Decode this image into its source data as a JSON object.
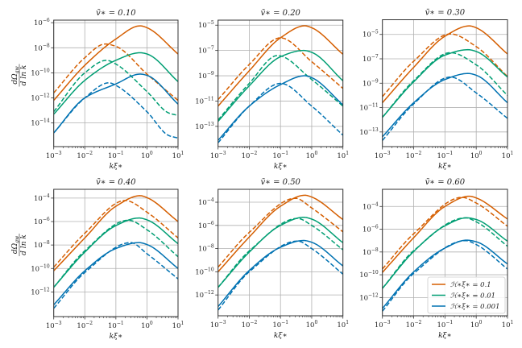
{
  "chart_data": [
    {
      "type": "line",
      "title": "v̄∗ = 0.10",
      "xlabel": "kξ∗",
      "ylabel": {
        "num": "dΩ",
        "num_sub": "gw",
        "den": "d ln k"
      },
      "xscale": "log",
      "yscale": "log",
      "xlim": [
        0.001,
        10
      ],
      "ylim": [
        1.3e-16,
        1.6e-06
      ],
      "xticks": [
        0.001,
        0.01,
        0.1,
        1,
        10
      ],
      "xtick_labels": [
        "10^−3",
        "10^−2",
        "10^−1",
        "10^0",
        "10^1"
      ],
      "yticks": [
        1e-14,
        1e-12,
        1e-10,
        1e-08,
        1e-06
      ],
      "ytick_labels": [
        "10^−14",
        "10^−12",
        "10^−10",
        "10^−8",
        "10^−6"
      ],
      "grid": true,
      "series": [
        {
          "hxi": "0.1",
          "style": "solid",
          "x": [
            0.001,
            0.01,
            0.1,
            0.6,
            1,
            10
          ],
          "y": [
            6.3e-13,
            4e-10,
            5e-08,
            5.6e-07,
            4e-07,
            3.2e-09
          ]
        },
        {
          "hxi": "0.1",
          "style": "dashed",
          "x": [
            0.001,
            0.01,
            0.045,
            0.1,
            1,
            10
          ],
          "y": [
            2.5e-12,
            1.6e-09,
            2e-08,
            1.3e-08,
            7.9e-11,
            6.3e-13
          ]
        },
        {
          "hxi": "0.01",
          "style": "solid",
          "x": [
            0.001,
            0.01,
            0.1,
            0.6,
            1,
            10
          ],
          "y": [
            5e-14,
            2.5e-11,
            1e-09,
            4e-09,
            3.2e-09,
            2e-11
          ]
        },
        {
          "hxi": "0.01",
          "style": "dashed",
          "x": [
            0.001,
            0.01,
            0.05,
            0.1,
            1,
            5,
            10
          ],
          "y": [
            7.9e-14,
            1e-10,
            1e-09,
            5e-10,
            3.2e-12,
            6.3e-14,
            4e-14
          ]
        },
        {
          "hxi": "0.001",
          "style": "solid",
          "x": [
            0.001,
            0.01,
            0.1,
            0.6,
            1,
            10
          ],
          "y": [
            1.6e-15,
            1e-12,
            1.3e-11,
            7.9e-11,
            6.3e-11,
            3.2e-13
          ]
        },
        {
          "hxi": "0.001",
          "style": "dashed",
          "x": [
            0.001,
            0.01,
            0.06,
            0.1,
            1,
            5,
            10
          ],
          "y": [
            1.6e-15,
            1e-12,
            1.6e-11,
            1e-11,
            7.9e-14,
            1e-15,
            6.3e-16
          ]
        }
      ]
    },
    {
      "type": "line",
      "title": "v̄∗ = 0.20",
      "xlabel": "kξ∗",
      "xscale": "log",
      "yscale": "log",
      "xlim": [
        0.001,
        10
      ],
      "ylim": [
        2.5e-15,
        2.5e-05
      ],
      "xticks": [
        0.001,
        0.01,
        0.1,
        1,
        10
      ],
      "xtick_labels": [
        "10^−3",
        "10^−2",
        "10^−1",
        "10^0",
        "10^1"
      ],
      "yticks": [
        1e-13,
        1e-11,
        1e-09,
        1e-07,
        1e-05
      ],
      "ytick_labels": [
        "10^−13",
        "10^−11",
        "10^−9",
        "10^−7",
        "10^−5"
      ],
      "grid": true,
      "series": [
        {
          "hxi": "0.1",
          "style": "solid",
          "x": [
            0.001,
            0.01,
            0.1,
            0.6,
            1,
            10
          ],
          "y": [
            4e-12,
            2.5e-09,
            1e-06,
            8.9e-06,
            6.3e-06,
            5e-08
          ]
        },
        {
          "hxi": "0.1",
          "style": "dashed",
          "x": [
            0.001,
            0.01,
            0.1,
            1,
            10
          ],
          "y": [
            1.3e-11,
            7.9e-09,
            1e-06,
            1.3e-08,
            1e-10
          ]
        },
        {
          "hxi": "0.01",
          "style": "solid",
          "x": [
            0.001,
            0.01,
            0.1,
            0.55,
            1,
            10
          ],
          "y": [
            2.5e-13,
            1.6e-10,
            3.2e-08,
            1e-07,
            7.1e-08,
            4e-10
          ]
        },
        {
          "hxi": "0.01",
          "style": "dashed",
          "x": [
            0.001,
            0.01,
            0.08,
            1,
            10
          ],
          "y": [
            3.2e-13,
            2.5e-10,
            4e-08,
            5e-10,
            4e-12
          ]
        },
        {
          "hxi": "0.001",
          "style": "solid",
          "x": [
            0.001,
            0.01,
            0.1,
            0.6,
            1,
            10
          ],
          "y": [
            7.9e-15,
            4e-12,
            2e-10,
            1e-09,
            7.1e-10,
            5e-12
          ]
        },
        {
          "hxi": "0.001",
          "style": "dashed",
          "x": [
            0.001,
            0.01,
            0.1,
            1,
            10
          ],
          "y": [
            5e-15,
            4e-12,
            2.5e-10,
            4e-12,
            2e-14
          ]
        }
      ]
    },
    {
      "type": "line",
      "title": "v̄∗ = 0.30",
      "xlabel": "kξ∗",
      "xscale": "log",
      "yscale": "log",
      "xlim": [
        0.001,
        10
      ],
      "ylim": [
        6.3e-15,
        0.00016
      ],
      "xticks": [
        0.001,
        0.01,
        0.1,
        1,
        10
      ],
      "xtick_labels": [
        "10^−3",
        "10^−2",
        "10^−1",
        "10^0",
        "10^1"
      ],
      "yticks": [
        1e-13,
        1e-11,
        1e-09,
        1e-07,
        1e-05
      ],
      "ytick_labels": [
        "10^−13",
        "10^−11",
        "10^−9",
        "10^−7",
        "10^−5"
      ],
      "grid": true,
      "series": [
        {
          "hxi": "0.1",
          "style": "solid",
          "x": [
            0.001,
            0.01,
            0.1,
            0.6,
            1,
            10
          ],
          "y": [
            2.5e-11,
            2e-08,
            7.1e-06,
            5e-05,
            3.5e-05,
            2.5e-07
          ]
        },
        {
          "hxi": "0.1",
          "style": "dashed",
          "x": [
            0.001,
            0.01,
            0.15,
            1,
            10
          ],
          "y": [
            7.9e-11,
            6.3e-08,
            1.1e-05,
            1e-06,
            3.5e-09
          ]
        },
        {
          "hxi": "0.01",
          "style": "solid",
          "x": [
            0.001,
            0.01,
            0.1,
            0.55,
            1,
            10
          ],
          "y": [
            1.6e-12,
            1.3e-09,
            2e-07,
            5.6e-07,
            4e-07,
            3.2e-09
          ]
        },
        {
          "hxi": "0.01",
          "style": "dashed",
          "x": [
            0.001,
            0.01,
            0.15,
            1,
            10
          ],
          "y": [
            1.6e-12,
            1.6e-09,
            3.2e-07,
            3.2e-08,
            1e-10
          ]
        },
        {
          "hxi": "0.001",
          "style": "solid",
          "x": [
            0.001,
            0.01,
            0.1,
            0.55,
            1,
            10
          ],
          "y": [
            4e-14,
            2.5e-11,
            2e-09,
            6.3e-09,
            4.5e-09,
            2.5e-11
          ]
        },
        {
          "hxi": "0.001",
          "style": "dashed",
          "x": [
            0.001,
            0.01,
            0.15,
            1,
            10
          ],
          "y": [
            2e-14,
            2e-11,
            3.2e-09,
            1.6e-10,
            1.3e-12
          ]
        }
      ]
    },
    {
      "type": "line",
      "title": "v̄∗ = 0.40",
      "xlabel": "kξ∗",
      "ylabel": {
        "num": "dΩ",
        "num_sub": "gw",
        "den": "d ln k"
      },
      "xscale": "log",
      "yscale": "log",
      "xlim": [
        0.001,
        10
      ],
      "ylim": [
        7.9e-15,
        0.00056
      ],
      "xticks": [
        0.001,
        0.01,
        0.1,
        1,
        10
      ],
      "xtick_labels": [
        "10^−3",
        "10^−2",
        "10^−1",
        "10^0",
        "10^1"
      ],
      "yticks": [
        1e-12,
        1e-10,
        1e-08,
        1e-06,
        0.0001
      ],
      "ytick_labels": [
        "10^−12",
        "10^−10",
        "10^−8",
        "10^−6",
        "10^−4"
      ],
      "grid": true,
      "series": [
        {
          "hxi": "0.1",
          "style": "solid",
          "x": [
            0.001,
            0.01,
            0.1,
            0.6,
            1,
            10
          ],
          "y": [
            6.3e-11,
            4e-08,
            2e-05,
            0.00016,
            0.00011,
            1e-06
          ]
        },
        {
          "hxi": "0.1",
          "style": "dashed",
          "x": [
            0.001,
            0.01,
            0.2,
            1,
            10
          ],
          "y": [
            1.3e-10,
            1e-07,
            6.3e-05,
            6.3e-06,
            4e-08
          ]
        },
        {
          "hxi": "0.01",
          "style": "solid",
          "x": [
            0.001,
            0.01,
            0.1,
            0.55,
            1,
            10
          ],
          "y": [
            2.5e-12,
            2.5e-09,
            4.5e-07,
            2e-06,
            1.4e-06,
            1.3e-08
          ]
        },
        {
          "hxi": "0.01",
          "style": "dashed",
          "x": [
            0.001,
            0.01,
            0.25,
            1,
            10
          ],
          "y": [
            2.5e-12,
            3.2e-09,
            1.3e-06,
            2e-07,
            1e-09
          ]
        },
        {
          "hxi": "0.001",
          "style": "solid",
          "x": [
            0.001,
            0.01,
            0.1,
            0.55,
            1,
            10
          ],
          "y": [
            7.9e-14,
            6.3e-11,
            5e-09,
            1.6e-08,
            1.1e-08,
            1e-10
          ]
        },
        {
          "hxi": "0.001",
          "style": "dashed",
          "x": [
            0.001,
            0.01,
            0.3,
            1,
            10
          ],
          "y": [
            4e-14,
            4.5e-11,
            1.6e-08,
            1.8e-09,
            1.3e-11
          ]
        }
      ]
    },
    {
      "type": "line",
      "title": "v̄∗ = 0.50",
      "xlabel": "kξ∗",
      "xscale": "log",
      "yscale": "log",
      "xlim": [
        0.001,
        10
      ],
      "ylim": [
        1.6e-14,
        0.0013
      ],
      "xticks": [
        0.001,
        0.01,
        0.1,
        1,
        10
      ],
      "xtick_labels": [
        "10^−3",
        "10^−2",
        "10^−1",
        "10^0",
        "10^1"
      ],
      "yticks": [
        1e-12,
        1e-10,
        1e-08,
        1e-06,
        0.0001
      ],
      "ytick_labels": [
        "10^−12",
        "10^−10",
        "10^−8",
        "10^−6",
        "10^−4"
      ],
      "grid": true,
      "series": [
        {
          "hxi": "0.1",
          "style": "solid",
          "x": [
            0.001,
            0.01,
            0.1,
            0.6,
            1,
            10
          ],
          "y": [
            1e-10,
            1e-07,
            4.5e-05,
            0.0004,
            0.00028,
            3.2e-06
          ]
        },
        {
          "hxi": "0.1",
          "style": "dashed",
          "x": [
            0.001,
            0.01,
            0.3,
            1,
            10
          ],
          "y": [
            2.5e-10,
            2.5e-07,
            0.00022,
            3.2e-05,
            2.8e-07
          ]
        },
        {
          "hxi": "0.01",
          "style": "solid",
          "x": [
            0.001,
            0.01,
            0.1,
            0.55,
            1,
            10
          ],
          "y": [
            4.5e-12,
            5e-09,
            1e-06,
            5e-06,
            3.5e-06,
            3.2e-08
          ]
        },
        {
          "hxi": "0.01",
          "style": "dashed",
          "x": [
            0.001,
            0.01,
            0.35,
            1,
            10
          ],
          "y": [
            4.5e-12,
            6.3e-09,
            4e-06,
            1e-06,
            7.9e-09
          ]
        },
        {
          "hxi": "0.001",
          "style": "solid",
          "x": [
            0.001,
            0.01,
            0.1,
            0.55,
            1,
            10
          ],
          "y": [
            1e-13,
            1.3e-10,
            1.3e-08,
            5e-08,
            3.5e-08,
            3.2e-10
          ]
        },
        {
          "hxi": "0.001",
          "style": "dashed",
          "x": [
            0.001,
            0.01,
            0.35,
            1,
            10
          ],
          "y": [
            5e-14,
            1e-10,
            4.5e-08,
            1e-08,
            6.3e-11
          ]
        }
      ]
    },
    {
      "type": "line",
      "title": "v̄∗ = 0.60",
      "xlabel": "kξ∗",
      "xscale": "log",
      "yscale": "log",
      "xlim": [
        0.001,
        10
      ],
      "ylim": [
        2.5e-14,
        0.0032
      ],
      "xticks": [
        0.001,
        0.01,
        0.1,
        1,
        10
      ],
      "xtick_labels": [
        "10^−3",
        "10^−2",
        "10^−1",
        "10^0",
        "10^1"
      ],
      "yticks": [
        1e-12,
        1e-10,
        1e-08,
        1e-06,
        0.0001
      ],
      "ytick_labels": [
        "10^−12",
        "10^−10",
        "10^−8",
        "10^−6",
        "10^−4"
      ],
      "grid": true,
      "legend": {
        "location": "lower right",
        "entries": [
          {
            "label": "ℋ∗ξ∗ = 0.1",
            "hxi": "0.1"
          },
          {
            "label": "ℋ∗ξ∗ = 0.01",
            "hxi": "0.01"
          },
          {
            "label": "ℋ∗ξ∗ = 0.001",
            "hxi": "0.001"
          }
        ]
      },
      "series": [
        {
          "hxi": "0.1",
          "style": "solid",
          "x": [
            0.001,
            0.01,
            0.1,
            0.6,
            1,
            10
          ],
          "y": [
            1.6e-10,
            1.8e-07,
            0.0001,
            0.00079,
            0.00056,
            7.9e-06
          ]
        },
        {
          "hxi": "0.1",
          "style": "dashed",
          "x": [
            0.001,
            0.01,
            0.35,
            1,
            10
          ],
          "y": [
            3.2e-10,
            4e-07,
            0.00063,
            0.0002,
            1.8e-06
          ]
        },
        {
          "hxi": "0.01",
          "style": "solid",
          "x": [
            0.001,
            0.01,
            0.1,
            0.5,
            1,
            10
          ],
          "y": [
            6.3e-12,
            1.1e-08,
            2e-06,
            1e-05,
            7.1e-06,
            8.9e-08
          ]
        },
        {
          "hxi": "0.01",
          "style": "dashed",
          "x": [
            0.001,
            0.01,
            0.45,
            1,
            10
          ],
          "y": [
            6.3e-12,
            1.3e-08,
            1e-05,
            4.5e-06,
            3.2e-08
          ]
        },
        {
          "hxi": "0.001",
          "style": "solid",
          "x": [
            0.001,
            0.01,
            0.1,
            0.5,
            1,
            10
          ],
          "y": [
            1.1e-13,
            1.8e-10,
            2.2e-08,
            1.1e-07,
            7.9e-08,
            8.9e-10
          ]
        },
        {
          "hxi": "0.001",
          "style": "dashed",
          "x": [
            0.001,
            0.01,
            0.45,
            1,
            10
          ],
          "y": [
            6.3e-14,
            1.3e-10,
            1e-07,
            4.5e-08,
            3.2e-10
          ]
        }
      ]
    }
  ],
  "colors": {
    "0.1": "#d55e00",
    "0.01": "#009e73",
    "0.001": "#0072b2",
    "grid": "#b0b0b0",
    "spine": "#333333"
  }
}
